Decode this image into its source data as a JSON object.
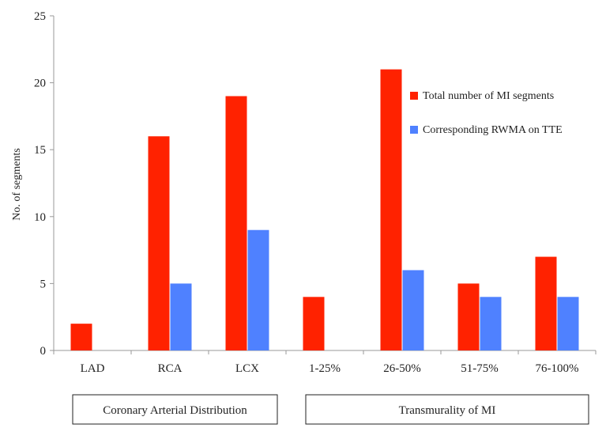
{
  "chart_data": {
    "type": "bar",
    "title": "",
    "xlabel": "",
    "ylabel": "No. of segments",
    "ylim": [
      0,
      25
    ],
    "yticks": [
      0,
      5,
      10,
      15,
      20,
      25
    ],
    "categories": [
      "LAD",
      "RCA",
      "LCX",
      "1-25%",
      "26-50%",
      "51-75%",
      "76-100%"
    ],
    "series": [
      {
        "name": "Total number of MI segments",
        "color": "#ff2200",
        "values": [
          2,
          16,
          19,
          4,
          21,
          5,
          7
        ]
      },
      {
        "name": "Corresponding RWMA on TTE",
        "color": "#4f81ff",
        "values": [
          0,
          5,
          9,
          0,
          6,
          4,
          4
        ]
      }
    ],
    "groups": [
      {
        "label": "Coronary Arterial Distribution",
        "categories": [
          "LAD",
          "RCA",
          "LCX"
        ]
      },
      {
        "label": "Transmurality of MI",
        "categories": [
          "1-25%",
          "26-50%",
          "51-75%",
          "76-100%"
        ]
      }
    ],
    "legend_position": "top-right",
    "grid": false
  }
}
